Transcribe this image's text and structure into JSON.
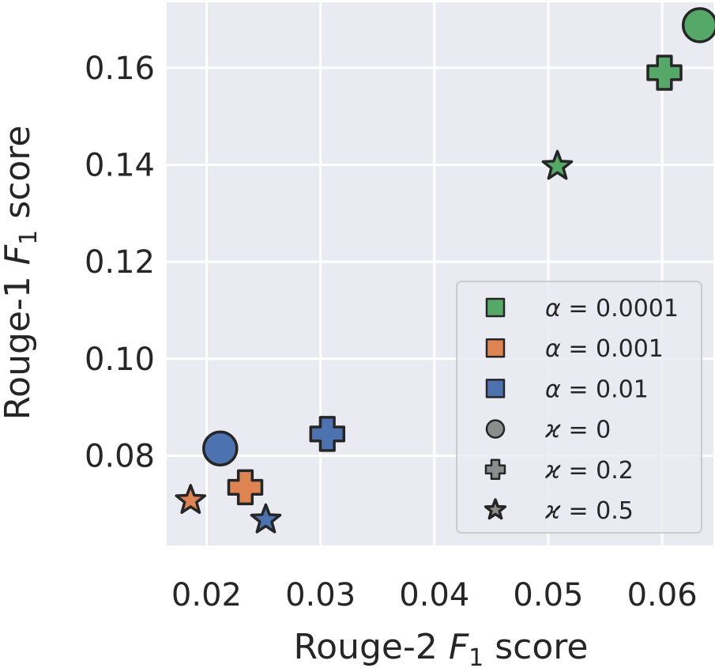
{
  "chart_data": {
    "type": "scatter",
    "xlabel": {
      "main": "Rouge-2 ",
      "italic": "F",
      "sub": "1",
      "tail": " score"
    },
    "ylabel": {
      "main": "Rouge-1 ",
      "italic": "F",
      "sub": "1",
      "tail": " score"
    },
    "xlim": [
      0.0165,
      0.0645
    ],
    "ylim": [
      0.0615,
      0.1735
    ],
    "xticks": [
      0.02,
      0.03,
      0.04,
      0.05,
      0.06
    ],
    "xtick_labels": [
      "0.02",
      "0.03",
      "0.04",
      "0.05",
      "0.06"
    ],
    "yticks": [
      0.08,
      0.1,
      0.12,
      0.14,
      0.16
    ],
    "ytick_labels": [
      "0.08",
      "0.10",
      "0.12",
      "0.14",
      "0.16"
    ],
    "grid": true,
    "legend_position": "lower-right",
    "colors": {
      "green": "#55a868",
      "orange": "#dd8452",
      "blue": "#4c72b0",
      "gray": "#8c8c8c"
    },
    "points": [
      {
        "alpha": "0.0001",
        "kappa": "0",
        "marker": "circle",
        "color": "green",
        "x": 0.0633,
        "y": 0.1688
      },
      {
        "alpha": "0.0001",
        "kappa": "0.2",
        "marker": "plus",
        "color": "green",
        "x": 0.0602,
        "y": 0.159
      },
      {
        "alpha": "0.0001",
        "kappa": "0.5",
        "marker": "star",
        "color": "green",
        "x": 0.0508,
        "y": 0.1397
      },
      {
        "alpha": "0.001",
        "kappa": "0.2",
        "marker": "plus",
        "color": "orange",
        "x": 0.0234,
        "y": 0.0735
      },
      {
        "alpha": "0.001",
        "kappa": "0.5",
        "marker": "star",
        "color": "orange",
        "x": 0.0186,
        "y": 0.0708
      },
      {
        "alpha": "0.01",
        "kappa": "0",
        "marker": "circle",
        "color": "blue",
        "x": 0.0212,
        "y": 0.0815
      },
      {
        "alpha": "0.01",
        "kappa": "0.2",
        "marker": "plus",
        "color": "blue",
        "x": 0.0306,
        "y": 0.0845
      },
      {
        "alpha": "0.01",
        "kappa": "0.5",
        "marker": "star",
        "color": "blue",
        "x": 0.0252,
        "y": 0.0668
      }
    ],
    "legend": [
      {
        "symbol": "α",
        "eq": " = ",
        "value": "0.0001",
        "marker": "square",
        "color": "green"
      },
      {
        "symbol": "α",
        "eq": " = ",
        "value": "0.001",
        "marker": "square",
        "color": "orange"
      },
      {
        "symbol": "α",
        "eq": " = ",
        "value": "0.01",
        "marker": "square",
        "color": "blue"
      },
      {
        "symbol": "ϰ",
        "eq": " = ",
        "value": "0",
        "marker": "circle",
        "color": "gray"
      },
      {
        "symbol": "ϰ",
        "eq": " = ",
        "value": "0.2",
        "marker": "plus",
        "color": "gray"
      },
      {
        "symbol": "ϰ",
        "eq": " = ",
        "value": "0.5",
        "marker": "star",
        "color": "gray"
      }
    ]
  }
}
